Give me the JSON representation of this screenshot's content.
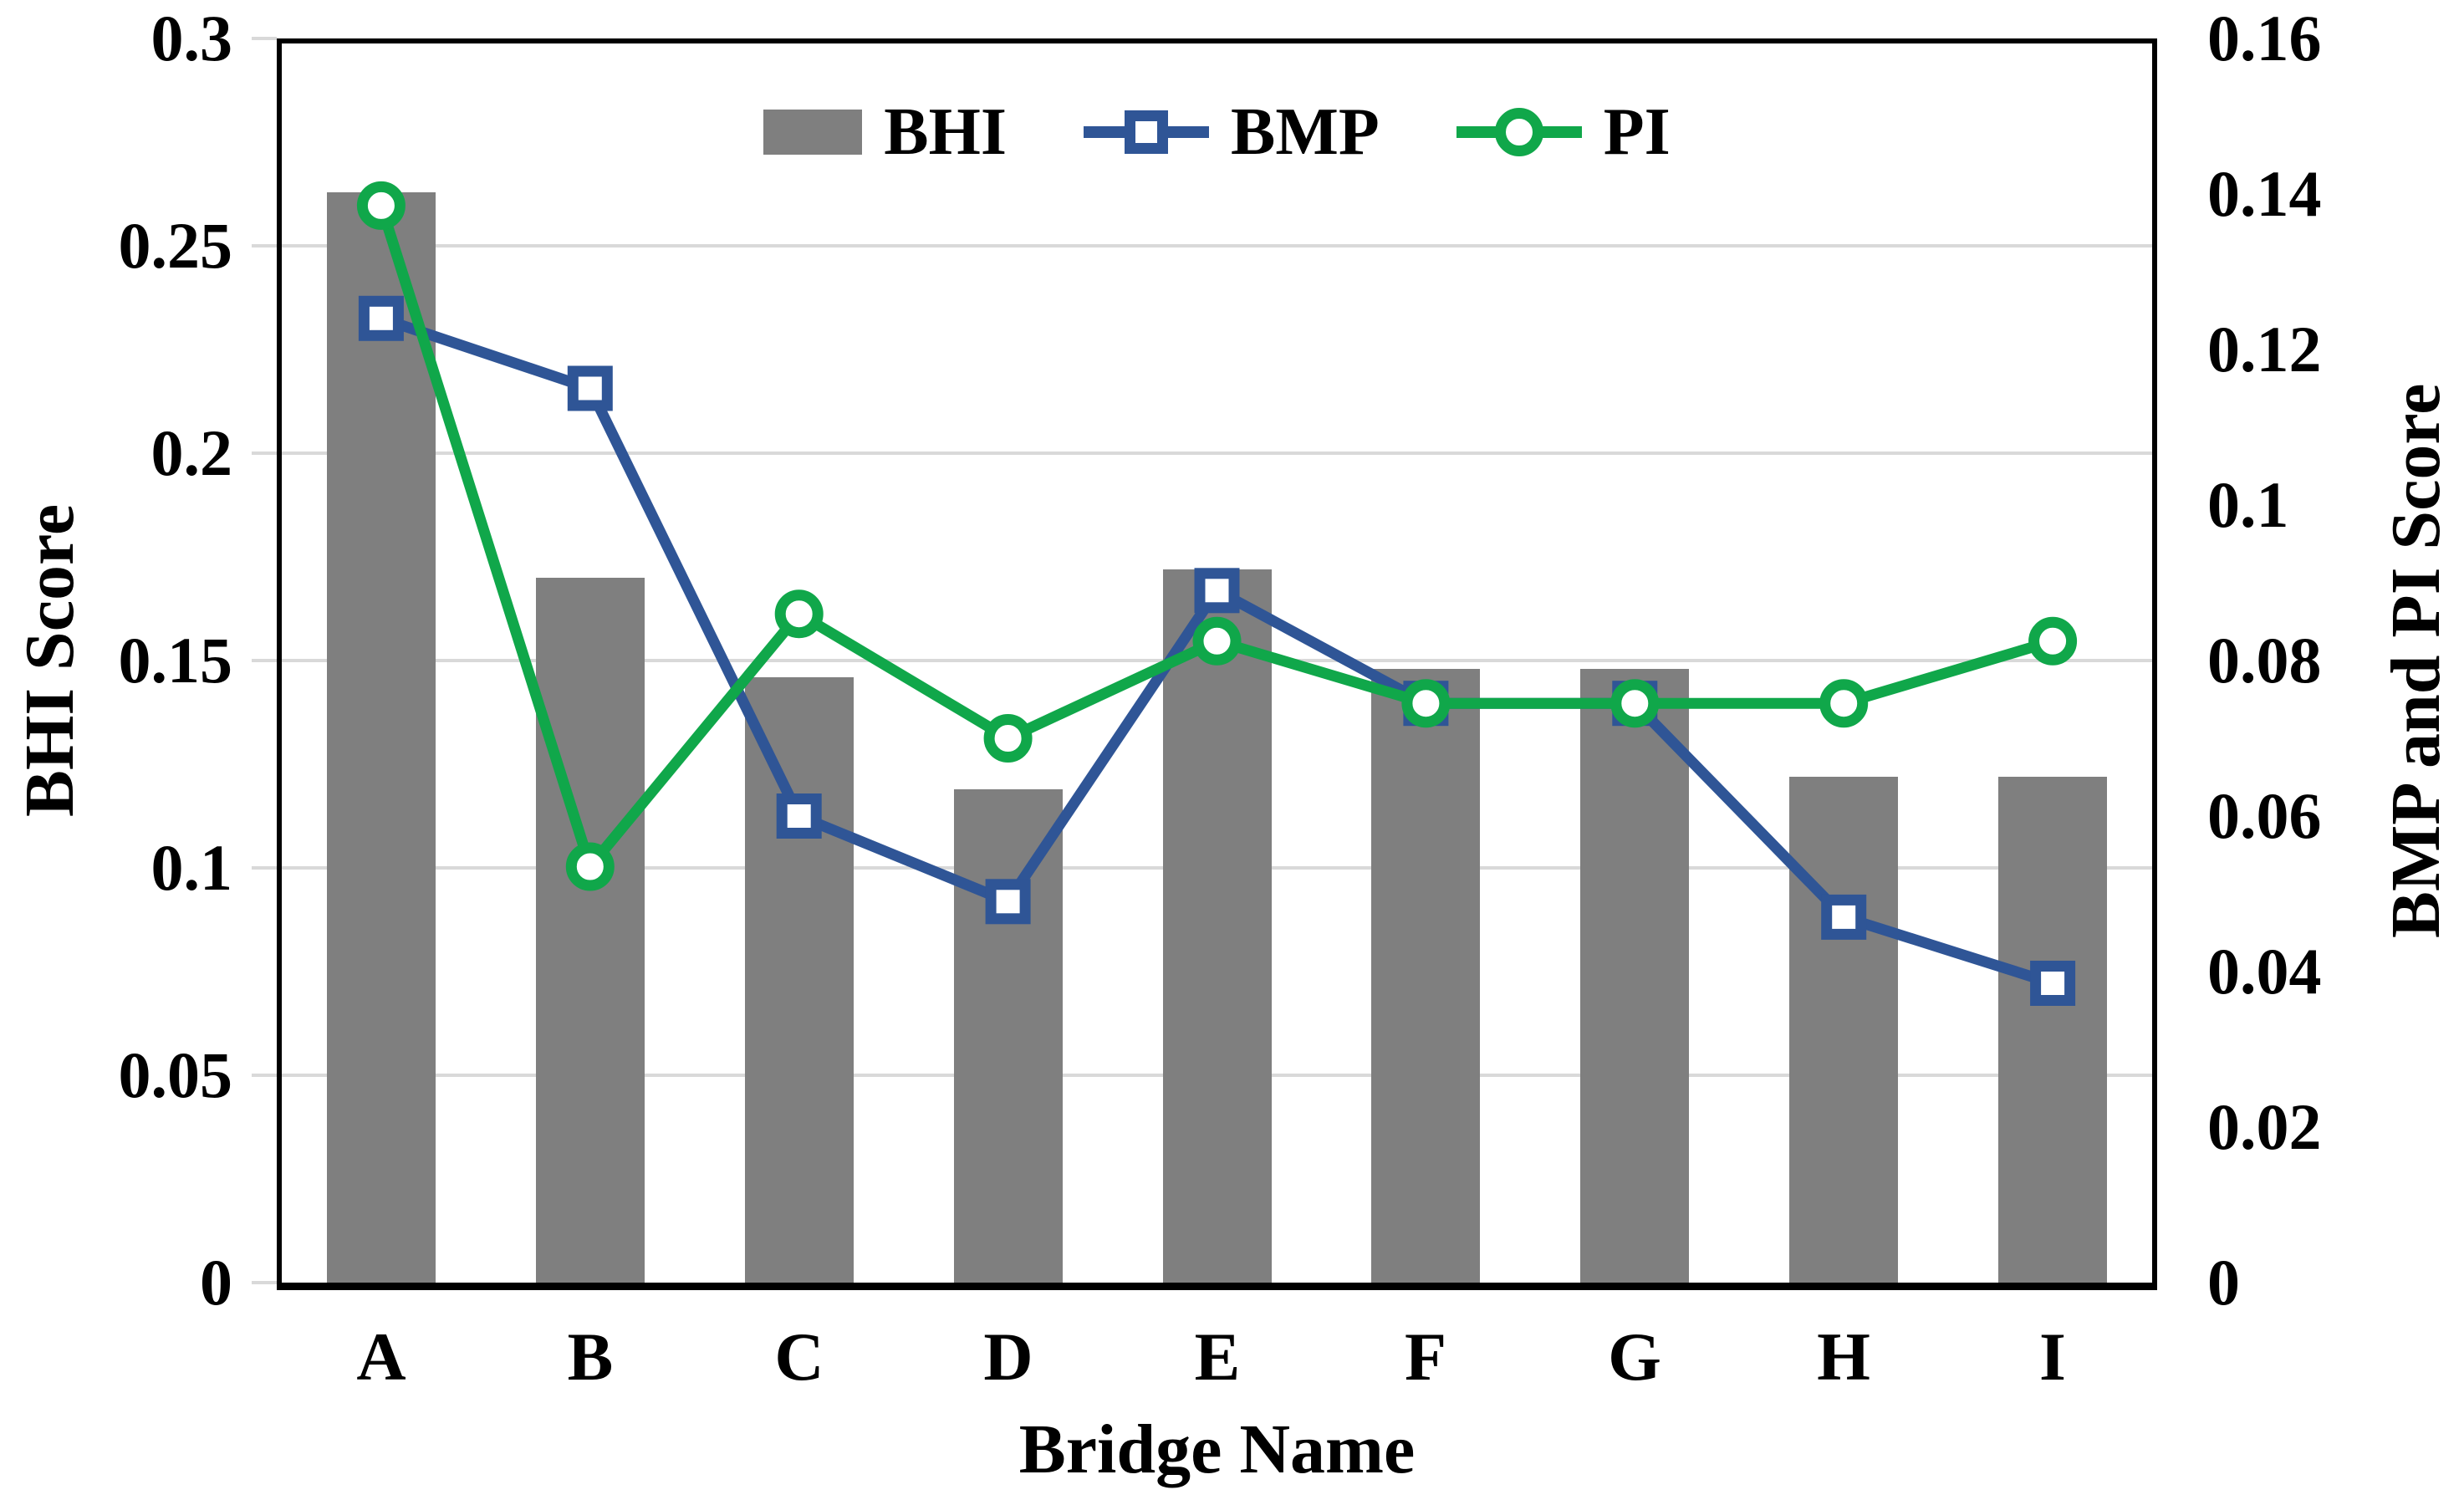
{
  "chart_data": {
    "type": "combo",
    "subtype": "bar + line, dual y-axes",
    "categories": [
      "A",
      "B",
      "C",
      "D",
      "E",
      "F",
      "G",
      "H",
      "I"
    ],
    "series": [
      {
        "name": "BHI",
        "type": "bar",
        "axis": "left",
        "color": "#7F7F7F",
        "values": [
          0.263,
          0.17,
          0.146,
          0.119,
          0.172,
          0.148,
          0.148,
          0.122,
          0.122
        ]
      },
      {
        "name": "BMP",
        "type": "line",
        "marker": "square",
        "axis": "right",
        "color": "#2F5596",
        "values": [
          0.124,
          0.115,
          0.06,
          0.049,
          0.089,
          0.0745,
          0.0745,
          0.047,
          0.0385
        ]
      },
      {
        "name": "PI",
        "type": "line",
        "marker": "circle",
        "axis": "right",
        "color": "#10A74A",
        "values": [
          0.1385,
          0.0535,
          0.086,
          0.07,
          0.0825,
          0.0745,
          0.0745,
          0.0745,
          0.0825
        ]
      }
    ],
    "xlabel": "Bridge Name",
    "ylabel_left": "BHI Score",
    "ylabel_right": "BMP and PI Score",
    "left_axis": {
      "min": 0,
      "max": 0.3,
      "step": 0.05,
      "tick_labels": [
        "0",
        "0.05",
        "0.1",
        "0.15",
        "0.2",
        "0.25",
        "0.3"
      ]
    },
    "right_axis": {
      "min": 0,
      "max": 0.16,
      "step": 0.02,
      "tick_labels": [
        "0",
        "0.02",
        "0.04",
        "0.06",
        "0.08",
        "0.1",
        "0.12",
        "0.14",
        "0.16"
      ]
    },
    "grid": "horizontal gridlines at left-axis 0.05 steps",
    "legend_position": "top-center",
    "legend_order": [
      "BHI",
      "BMP",
      "PI"
    ],
    "colors": {
      "gridline": "#D9D9D9",
      "frame": "#000000",
      "background": "#FFFFFF",
      "text": "#000000"
    }
  }
}
